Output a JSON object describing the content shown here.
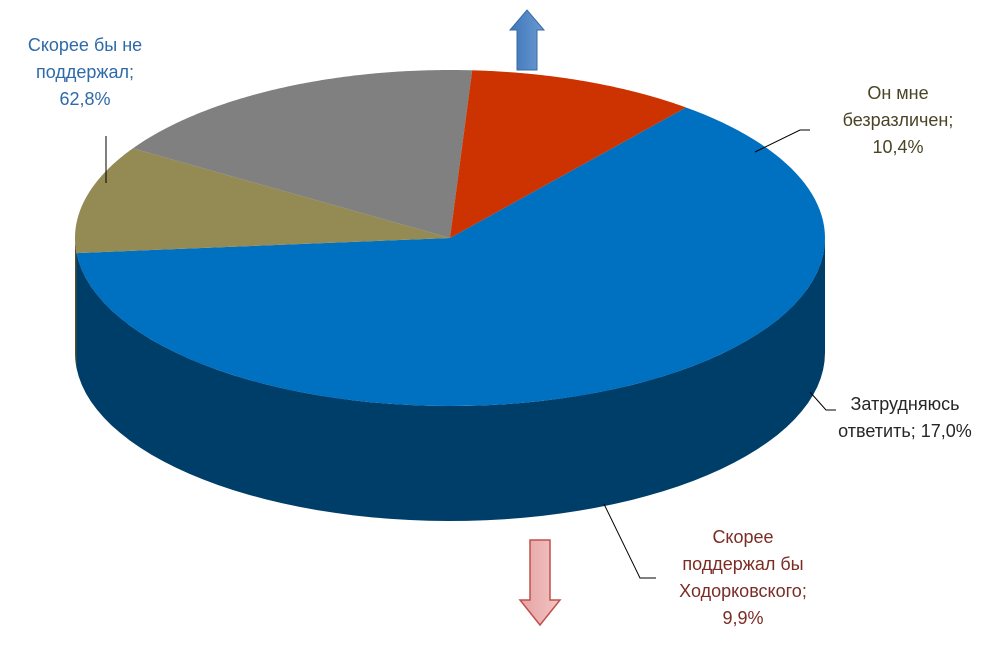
{
  "chart_data": {
    "type": "pie",
    "categories": [
      "Скорее бы не поддержал",
      "Он мне безразличен",
      "Затрудняюсь ответить",
      "Скорее поддержал бы Ходорковского"
    ],
    "values": [
      62.8,
      10.4,
      17.0,
      9.9
    ],
    "value_labels": [
      "62,8%",
      "10,4%",
      "17,0%",
      "9,9%"
    ],
    "label_separator": ";",
    "colors": [
      "#0070c0",
      "#948a54",
      "#808080",
      "#cc3300"
    ]
  }
}
